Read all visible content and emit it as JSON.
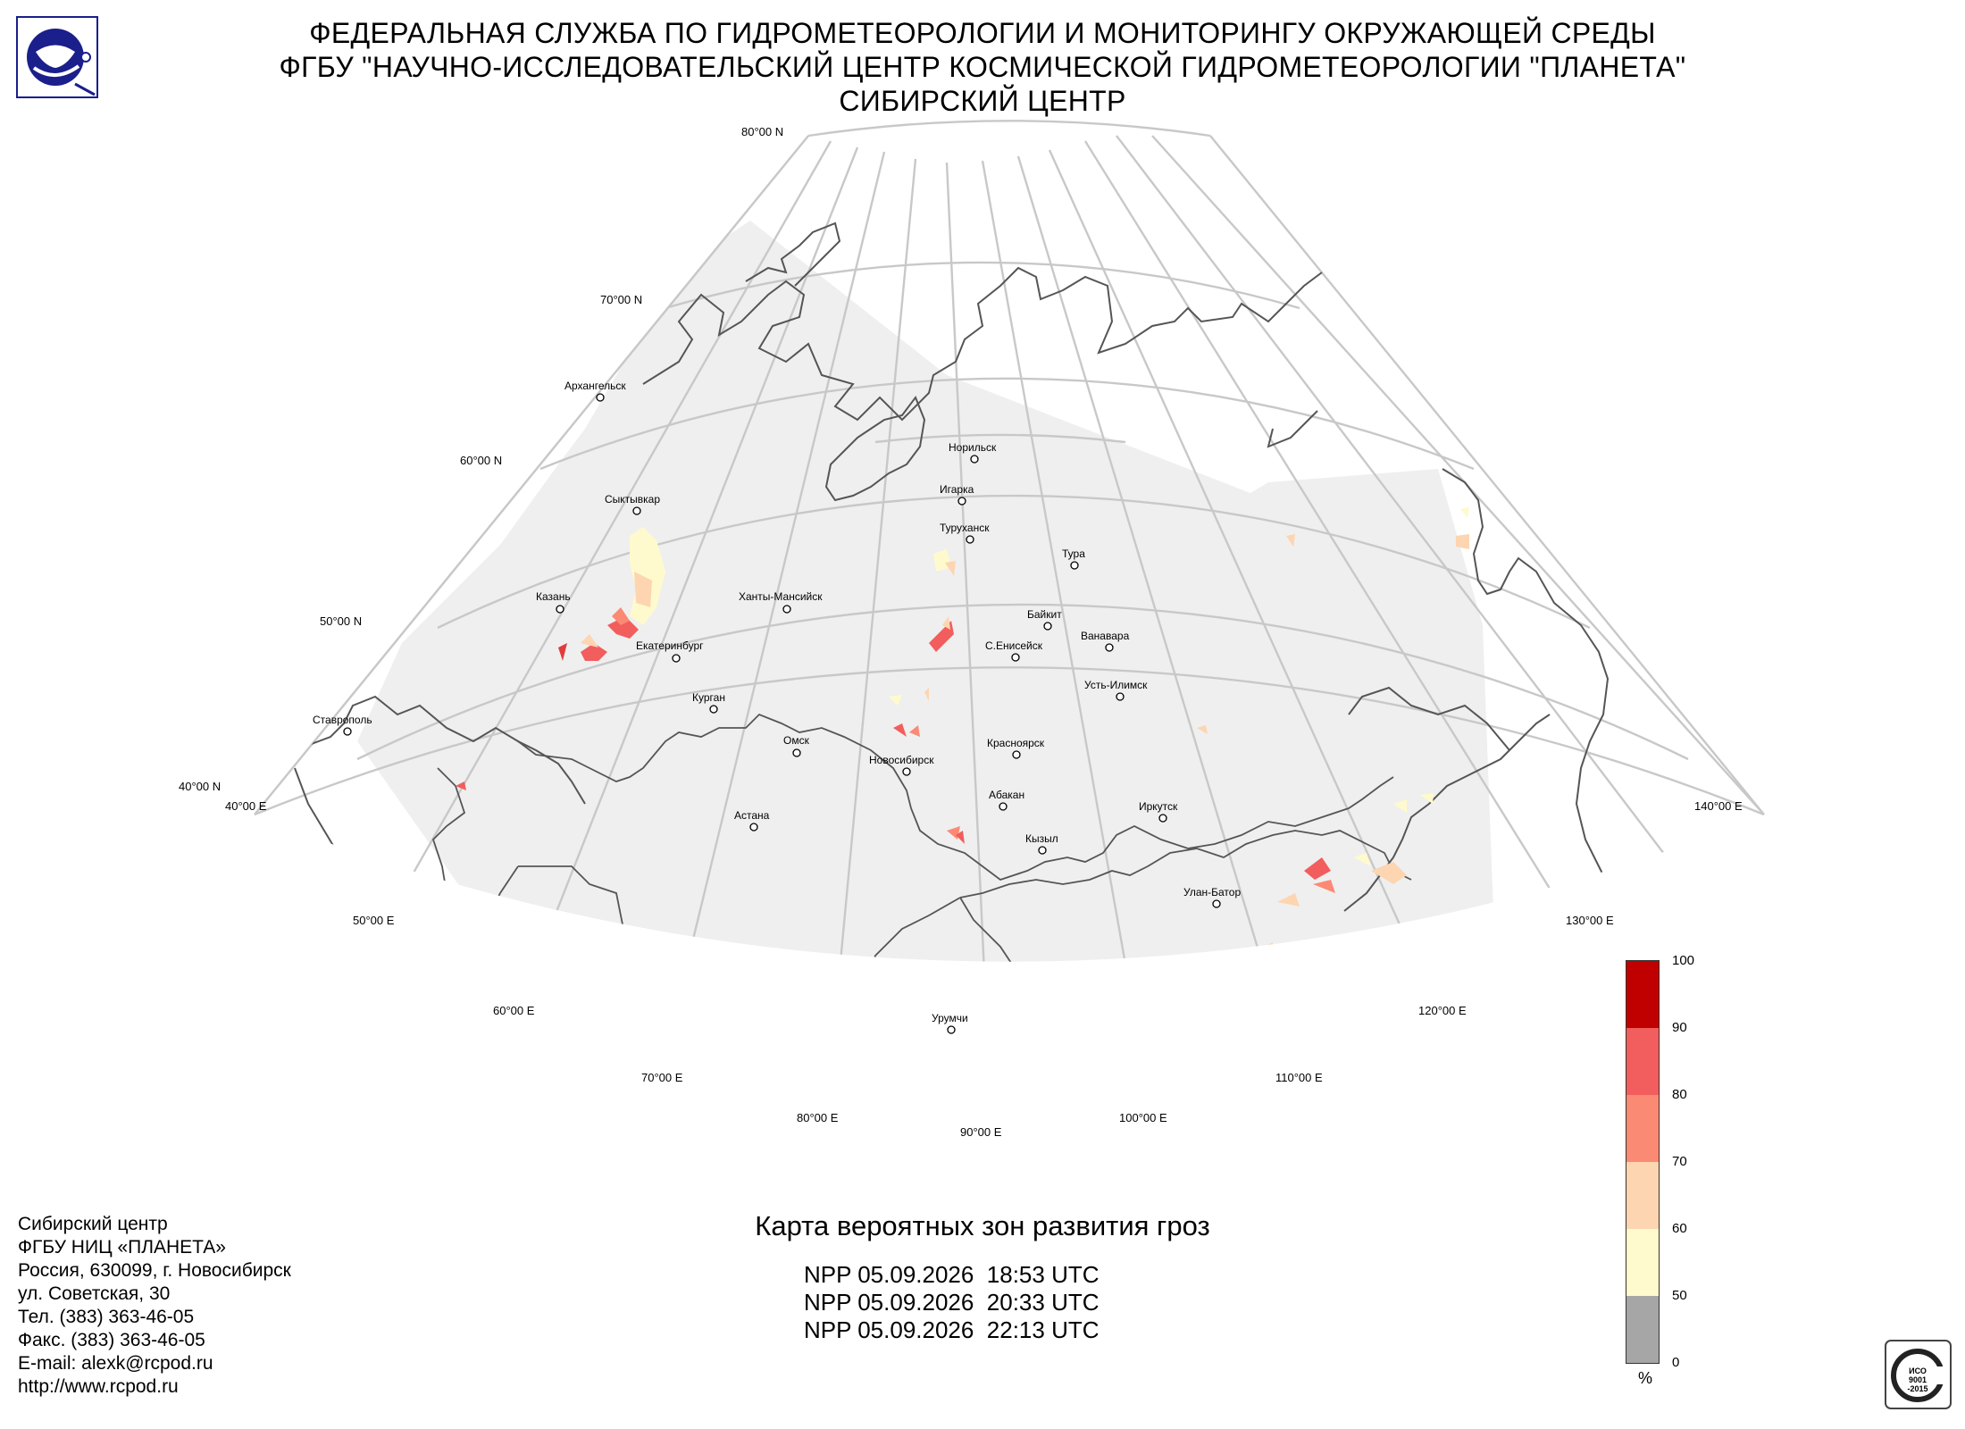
{
  "header": {
    "line1": "ФЕДЕРАЛЬНАЯ СЛУЖБА ПО ГИДРОМЕТЕОРОЛОГИИ И МОНИТОРИНГУ ОКРУЖАЮЩЕЙ СРЕДЫ",
    "line2": "ФГБУ \"НАУЧНО-ИССЛЕДОВАТЕЛЬСКИЙ ЦЕНТР КОСМИЧЕСКОЙ ГИДРОМЕТЕОРОЛОГИИ \"ПЛАНЕТА\"",
    "line3": "СИБИРСКИЙ ЦЕНТР"
  },
  "map": {
    "lat_labels": [
      "80°00 N",
      "70°00 N",
      "60°00 N",
      "50°00 N",
      "40°00 N"
    ],
    "lon_labels": [
      "40°00 E",
      "50°00 E",
      "60°00 E",
      "70°00 E",
      "80°00 E",
      "90°00 E",
      "100°00 E",
      "110°00 E",
      "120°00 E",
      "130°00 E",
      "140°00 E"
    ],
    "cities": [
      "Архангельск",
      "Сыктывкар",
      "Казань",
      "Екатеринбург",
      "Ханты-Мансийск",
      "Курган",
      "Ставрополь",
      "Омск",
      "Новосибирск",
      "Астана",
      "Норильск",
      "Игарка",
      "Туруханск",
      "Тура",
      "Байкит",
      "С.Енисейск",
      "Ванавара",
      "Усть-Илимск",
      "Красноярск",
      "Абакан",
      "Кызыл",
      "Иркутск",
      "Улан-Батор",
      "Урумчи"
    ],
    "colors": {
      "coverage": "#efefef",
      "grid": "#c8c8c8",
      "border": "#555555"
    }
  },
  "title": "Карта вероятных зон развития гроз",
  "passes": [
    "NPP 05.09.2026  18:53 UTC",
    "NPP 05.09.2026  20:33 UTC",
    "NPP 05.09.2026  22:13 UTC"
  ],
  "contacts": [
    "Сибирский центр",
    "ФГБУ НИЦ «ПЛАНЕТА»",
    "Россия, 630099, г. Новосибирск",
    "ул. Советская, 30",
    "Тел. (383) 363-46-05",
    "Факс. (383) 363-46-05",
    "E-mail: alexk@rcpod.ru",
    "http://www.rcpod.ru"
  ],
  "legend": {
    "unit": "%",
    "ticks": [
      "100",
      "90",
      "80",
      "70",
      "60",
      "50",
      "0"
    ],
    "colors": [
      "#c00000",
      "#f25d5d",
      "#fb8a75",
      "#fdd5b1",
      "#fffacd",
      "#a6a6a6"
    ]
  },
  "iso_badge": {
    "line1": "ИСО",
    "line2": "9001",
    "line3": "-2015"
  }
}
